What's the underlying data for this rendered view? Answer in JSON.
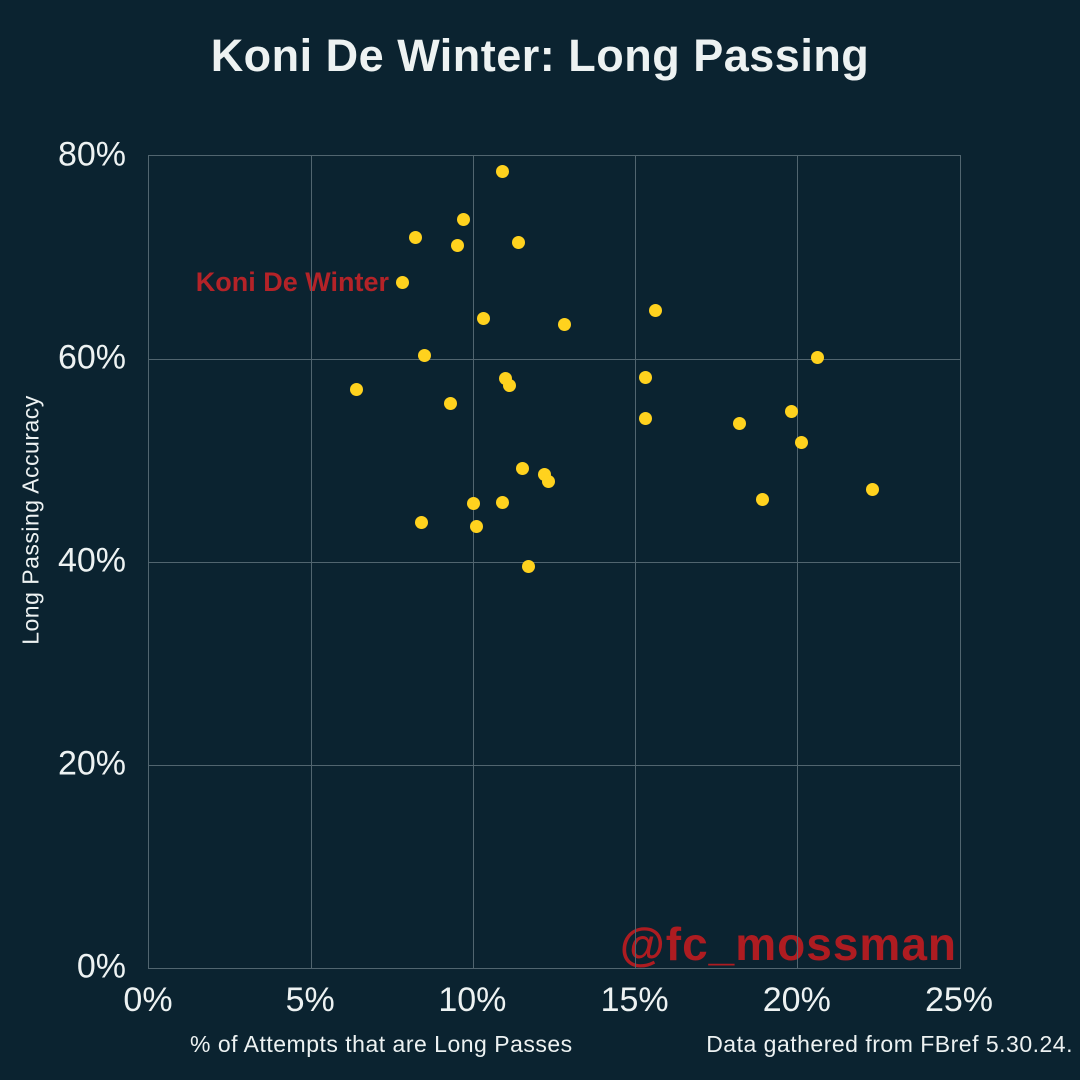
{
  "title": "Koni De Winter: Long Passing",
  "watermark": "@fc_mossman",
  "footer": "Data gathered from FBref 5.30.24.",
  "colors": {
    "background": "#0b2330",
    "text": "#edf2f2",
    "grid": "#51656f",
    "point": "#ffd21e",
    "annotation_red": "#b42328",
    "watermark_red": "#ae1c21"
  },
  "chart_data": {
    "type": "scatter",
    "title": "Koni De Winter: Long Passing",
    "xlabel": "% of Attempts that are Long Passes",
    "ylabel": "Long Passing Accuracy",
    "xlim": [
      0,
      25
    ],
    "ylim": [
      0,
      80
    ],
    "grid": true,
    "x_ticks": [
      {
        "value": 0,
        "label": "0%"
      },
      {
        "value": 5,
        "label": "5%"
      },
      {
        "value": 10,
        "label": "10%"
      },
      {
        "value": 15,
        "label": "15%"
      },
      {
        "value": 20,
        "label": "20%"
      },
      {
        "value": 25,
        "label": "25%"
      }
    ],
    "y_ticks": [
      {
        "value": 0,
        "label": "0%"
      },
      {
        "value": 20,
        "label": "20%"
      },
      {
        "value": 40,
        "label": "40%"
      },
      {
        "value": 60,
        "label": "60%"
      },
      {
        "value": 80,
        "label": "80%"
      }
    ],
    "points": [
      [
        10.9,
        78.5
      ],
      [
        9.7,
        73.7
      ],
      [
        8.2,
        72.0
      ],
      [
        11.4,
        71.5
      ],
      [
        9.5,
        71.2
      ],
      [
        7.8,
        67.5
      ],
      [
        15.6,
        64.8
      ],
      [
        10.3,
        64.0
      ],
      [
        12.8,
        63.4
      ],
      [
        8.5,
        60.3
      ],
      [
        20.6,
        60.1
      ],
      [
        15.3,
        58.2
      ],
      [
        11.0,
        58.1
      ],
      [
        11.1,
        57.4
      ],
      [
        6.4,
        57.0
      ],
      [
        9.3,
        55.6
      ],
      [
        19.8,
        54.8
      ],
      [
        15.3,
        54.1
      ],
      [
        18.2,
        53.6
      ],
      [
        20.1,
        51.8
      ],
      [
        11.5,
        49.2
      ],
      [
        12.2,
        48.6
      ],
      [
        12.3,
        47.9
      ],
      [
        22.3,
        47.1
      ],
      [
        18.9,
        46.2
      ],
      [
        10.9,
        45.9
      ],
      [
        10.0,
        45.8
      ],
      [
        8.4,
        43.9
      ],
      [
        10.1,
        43.5
      ],
      [
        11.7,
        39.6
      ]
    ],
    "highlight": {
      "label": "Koni De Winter",
      "x": 7.8,
      "y": 67.5
    },
    "legend": null
  }
}
